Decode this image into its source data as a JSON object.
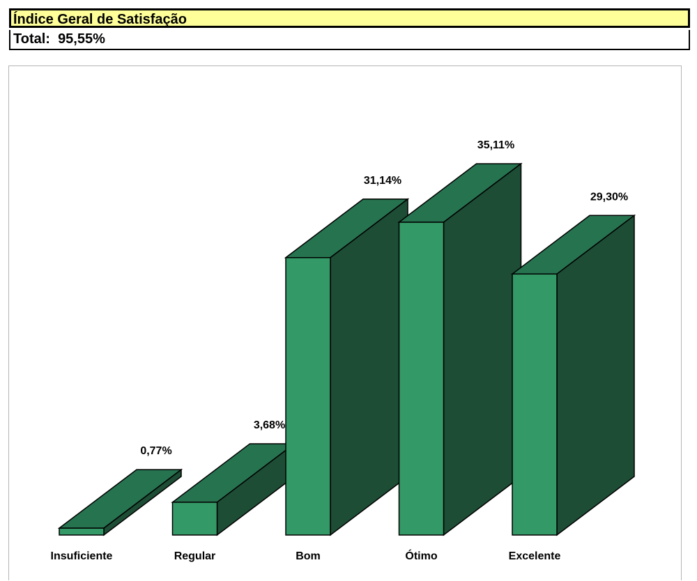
{
  "header": {
    "title": "Índice Geral de Satisfação",
    "total_label": "Total:  95,55%"
  },
  "colors": {
    "front": "#339966",
    "top": "#267350",
    "side": "#1d4d35",
    "header_bg": "#ffff99"
  },
  "chart_data": {
    "type": "bar",
    "categories": [
      "Insuficiente",
      "Regular",
      "Bom",
      "Ótimo",
      "Excelente"
    ],
    "values": [
      0.77,
      3.68,
      31.14,
      35.11,
      29.3
    ],
    "data_labels": [
      "0,77%",
      "3,68%",
      "31,14%",
      "35,11%",
      "29,30%"
    ],
    "title": "",
    "xlabel": "",
    "ylabel": "",
    "ylim": [
      0,
      35.11
    ],
    "grid": false,
    "legend": "none",
    "style": "3d-column"
  }
}
